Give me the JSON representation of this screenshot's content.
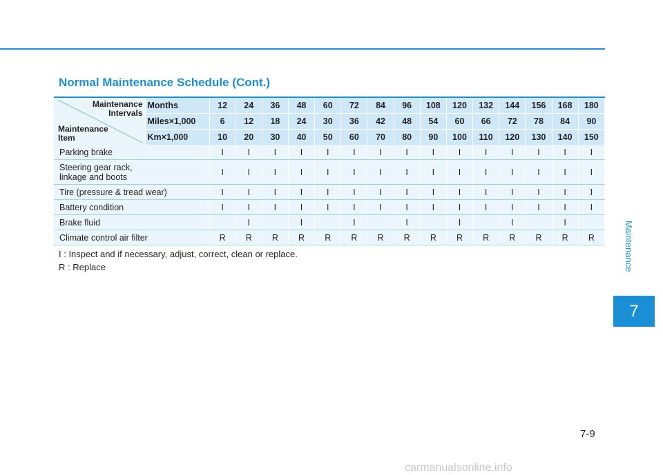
{
  "section_tab": {
    "label": "Maintenance",
    "number": "7"
  },
  "page_number": "7-9",
  "title": "Normal Maintenance Schedule (Cont.)",
  "corner": {
    "intervals_line1": "Maintenance",
    "intervals_line2": "Intervals",
    "item_line1": "Maintenance",
    "item_line2": "Item"
  },
  "header_rows": [
    {
      "label": "Months",
      "values": [
        "12",
        "24",
        "36",
        "48",
        "60",
        "72",
        "84",
        "96",
        "108",
        "120",
        "132",
        "144",
        "156",
        "168",
        "180"
      ]
    },
    {
      "label": "Miles×1,000",
      "values": [
        "6",
        "12",
        "18",
        "24",
        "30",
        "36",
        "42",
        "48",
        "54",
        "60",
        "66",
        "72",
        "78",
        "84",
        "90"
      ]
    },
    {
      "label": "Km×1,000",
      "values": [
        "10",
        "20",
        "30",
        "40",
        "50",
        "60",
        "70",
        "80",
        "90",
        "100",
        "110",
        "120",
        "130",
        "140",
        "150"
      ]
    }
  ],
  "items": [
    {
      "name": "Parking brake",
      "values": [
        "I",
        "I",
        "I",
        "I",
        "I",
        "I",
        "I",
        "I",
        "I",
        "I",
        "I",
        "I",
        "I",
        "I",
        "I"
      ]
    },
    {
      "name": "Steering gear rack, linkage and boots",
      "values": [
        "I",
        "I",
        "I",
        "I",
        "I",
        "I",
        "I",
        "I",
        "I",
        "I",
        "I",
        "I",
        "I",
        "I",
        "I"
      ]
    },
    {
      "name": "Tire (pressure & tread wear)",
      "values": [
        "I",
        "I",
        "I",
        "I",
        "I",
        "I",
        "I",
        "I",
        "I",
        "I",
        "I",
        "I",
        "I",
        "I",
        "I"
      ]
    },
    {
      "name": "Battery condition",
      "values": [
        "I",
        "I",
        "I",
        "I",
        "I",
        "I",
        "I",
        "I",
        "I",
        "I",
        "I",
        "I",
        "I",
        "I",
        "I"
      ]
    },
    {
      "name": "Brake fluid",
      "values": [
        "",
        "I",
        "",
        "I",
        "",
        "I",
        "",
        "I",
        "",
        "I",
        "",
        "I",
        "",
        "I",
        ""
      ]
    },
    {
      "name": "Climate control air filter",
      "values": [
        "R",
        "R",
        "R",
        "R",
        "R",
        "R",
        "R",
        "R",
        "R",
        "R",
        "R",
        "R",
        "R",
        "R",
        "R"
      ]
    }
  ],
  "legend": [
    "I : Inspect and if necessary, adjust, correct, clean or replace.",
    "R : Replace"
  ],
  "watermark": "carmanualsonline.info"
}
